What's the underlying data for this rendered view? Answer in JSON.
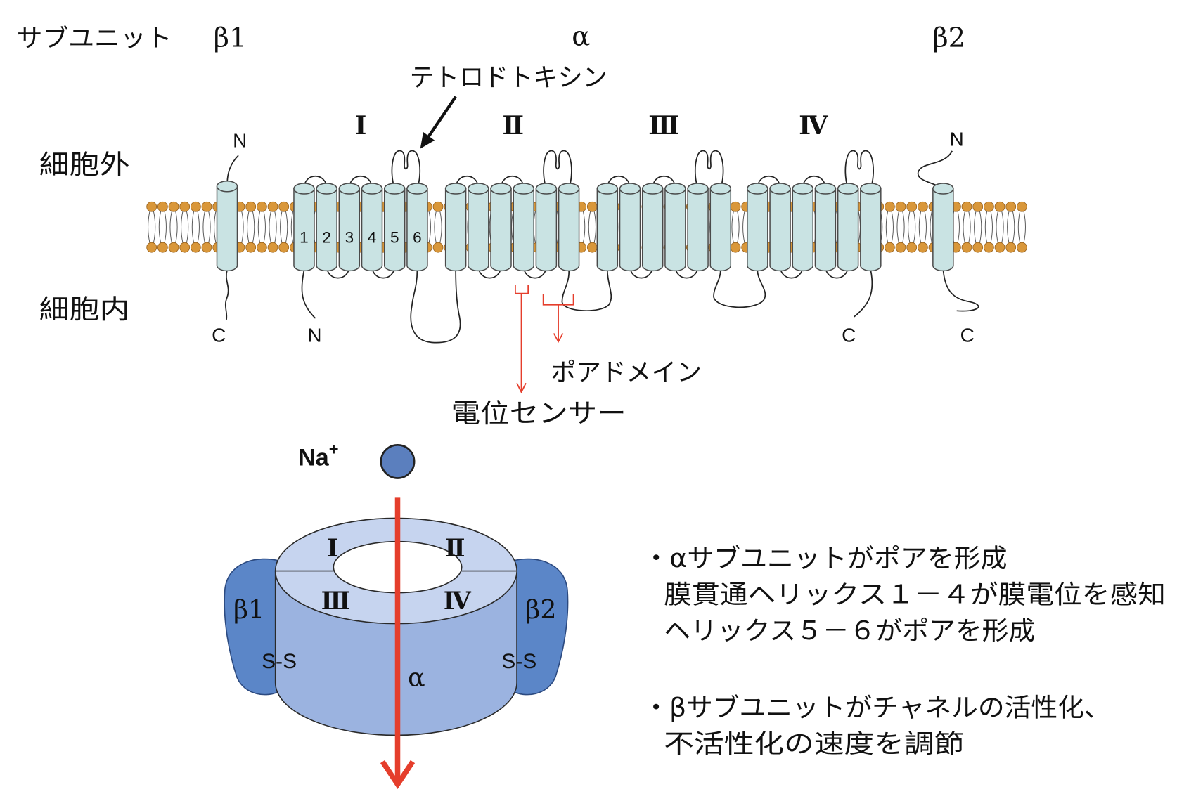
{
  "header": {
    "subunit_label": "サブユニット",
    "beta1": "β1",
    "alpha": "α",
    "beta2": "β2"
  },
  "toxin": {
    "label": "テトロドトキシン"
  },
  "membrane_model": {
    "domains": [
      "Ⅰ",
      "Ⅱ",
      "Ⅲ",
      "Ⅳ"
    ],
    "extracellular": "細胞外",
    "intracellular": "細胞内",
    "helix_numbers": [
      "1",
      "2",
      "3",
      "4",
      "5",
      "6"
    ],
    "termini": {
      "beta1_n": "N",
      "beta1_c": "C",
      "alpha_n": "N",
      "alpha_c": "C",
      "beta2_n": "N",
      "beta2_c": "C"
    },
    "pore_domain_label": "ポアドメイン",
    "voltage_sensor_label": "電位センサー"
  },
  "ion": {
    "symbol": "Na",
    "charge": "+"
  },
  "channel_model": {
    "domains": [
      "Ⅰ",
      "Ⅱ",
      "Ⅲ",
      "Ⅳ"
    ],
    "beta1": "β1",
    "beta2": "β2",
    "disulfide_left": "S-S",
    "disulfide_right": "S-S",
    "alpha": "α"
  },
  "notes": [
    "・αサブユニットがポアを形成",
    "膜貫通ヘリックス１－４が膜電位を感知",
    "ヘリックス５－６がポアを形成",
    "・βサブユニットがチャネルの活性化、",
    "不活性化の速度を調節"
  ],
  "colors": {
    "helix": "#c9e3e3",
    "lipid_head": "#d9973a",
    "alpha_ring_side": "#9bb3e0",
    "alpha_ring_top": "#c6d4ef",
    "beta_subunit": "#5b86c8",
    "na_ion": "#5b7fbe",
    "annotation_red": "#e53e2c"
  }
}
